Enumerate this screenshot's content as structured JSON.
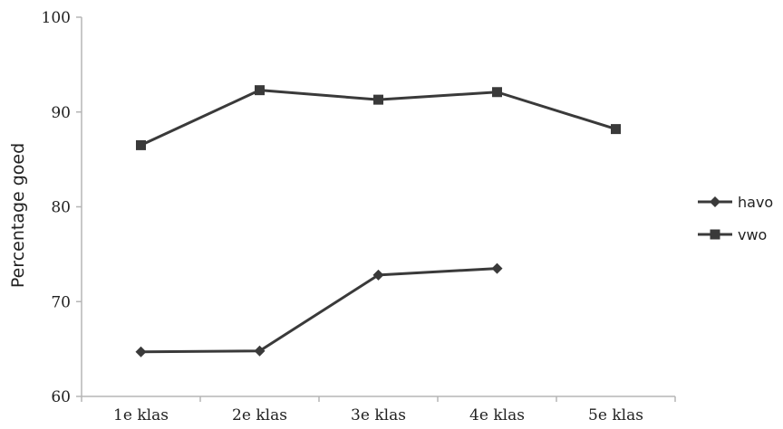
{
  "chart_data": {
    "type": "line",
    "title": "",
    "xlabel": "",
    "ylabel": "Percentage goed",
    "categories": [
      "1e klas",
      "2e klas",
      "3e klas",
      "4e klas",
      "5e klas"
    ],
    "ylim": [
      60,
      100
    ],
    "yticks": [
      60,
      70,
      80,
      90,
      100
    ],
    "grid": false,
    "legend_position": "right",
    "series": [
      {
        "name": "havo",
        "marker": "diamond",
        "color": "#3a3a3a",
        "values": [
          64.7,
          64.8,
          72.8,
          73.5,
          null
        ]
      },
      {
        "name": "vwo",
        "marker": "square",
        "color": "#3a3a3a",
        "values": [
          86.5,
          92.3,
          91.3,
          92.1,
          88.2
        ]
      }
    ]
  }
}
